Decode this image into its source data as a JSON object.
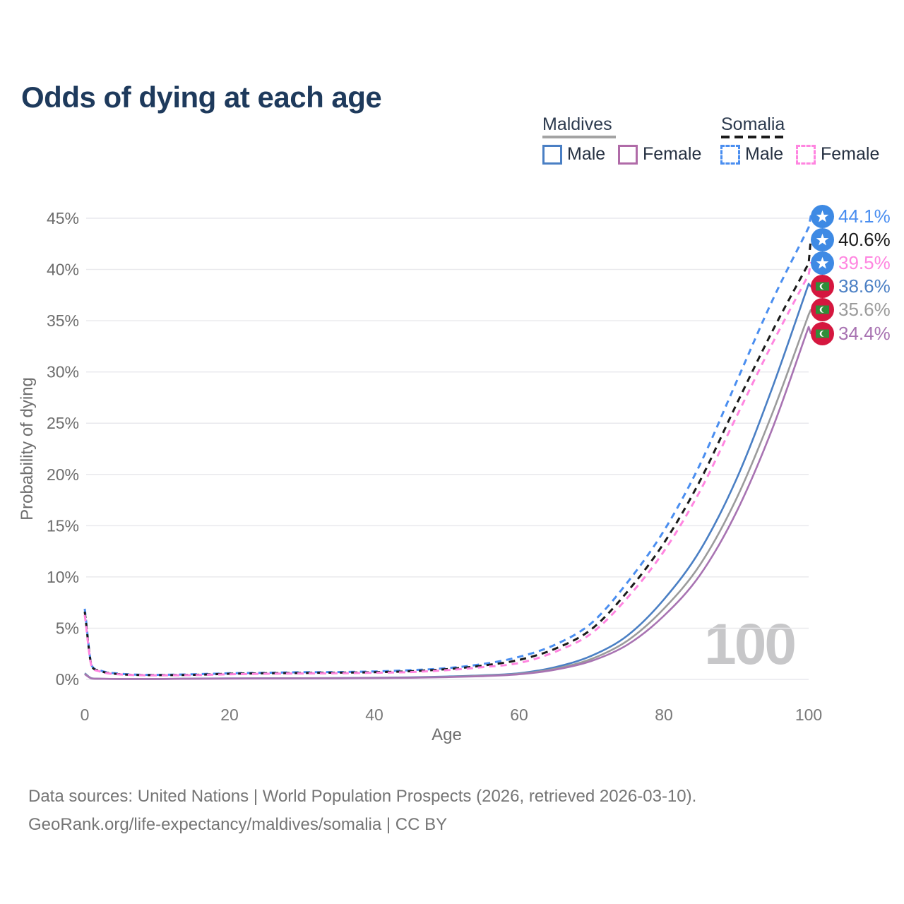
{
  "title": "Odds of dying at each age",
  "legend": {
    "groups": [
      {
        "label": "Maldives",
        "line_style": "solid",
        "underline_color": "#a3a3a3",
        "items": [
          {
            "label": "Male",
            "color": "#4a7fc4",
            "dashed": false
          },
          {
            "label": "Female",
            "color": "#b06ba8",
            "dashed": false
          }
        ]
      },
      {
        "label": "Somalia",
        "line_style": "dashed",
        "underline_color": "#1a1a1a",
        "items": [
          {
            "label": "Male",
            "color": "#4a8ef0",
            "dashed": true
          },
          {
            "label": "Female",
            "color": "#ff85e0",
            "dashed": true
          }
        ]
      }
    ]
  },
  "chart_data": {
    "type": "line",
    "title": "Odds of dying at each age",
    "xlabel": "Age",
    "ylabel": "Probability of dying",
    "xlim": [
      0,
      100
    ],
    "ylim": [
      0,
      45
    ],
    "xticks": [
      0,
      20,
      40,
      60,
      80,
      100
    ],
    "xtick_labels": [
      "0",
      "20",
      "40",
      "60",
      "80",
      "100"
    ],
    "yticks": [
      0,
      5,
      10,
      15,
      20,
      25,
      30,
      35,
      40,
      45
    ],
    "ytick_labels": [
      "0%",
      "5%",
      "10%",
      "15%",
      "20%",
      "25%",
      "30%",
      "35%",
      "40%",
      "45%"
    ],
    "grid": "horizontal",
    "legend_position": "top-right",
    "hover_age_label": "100",
    "ages": [
      0,
      1,
      2,
      5,
      10,
      15,
      20,
      25,
      30,
      35,
      40,
      45,
      50,
      55,
      60,
      65,
      70,
      75,
      80,
      85,
      90,
      95,
      100
    ],
    "series": [
      {
        "name": "Somalia Male",
        "country": "Somalia",
        "sex": "Male",
        "color": "#4a8ef0",
        "dashed": true,
        "flag": "somalia",
        "end_label": "44.1%",
        "end_value": 44.1,
        "values": [
          6.9,
          1.3,
          0.9,
          0.55,
          0.45,
          0.5,
          0.6,
          0.65,
          0.7,
          0.72,
          0.78,
          0.9,
          1.1,
          1.5,
          2.2,
          3.4,
          5.5,
          9.5,
          14.5,
          21.0,
          29.0,
          37.0,
          44.1
        ]
      },
      {
        "name": "Somalia Both sexes",
        "country": "Somalia",
        "sex": "Both",
        "color": "#1a1a1a",
        "dashed": true,
        "flag": "somalia",
        "end_label": "40.6%",
        "end_value": 40.6,
        "values": [
          6.6,
          1.25,
          0.85,
          0.5,
          0.42,
          0.45,
          0.55,
          0.6,
          0.63,
          0.66,
          0.7,
          0.8,
          1.0,
          1.35,
          1.9,
          3.0,
          4.9,
          8.6,
          13.3,
          19.4,
          26.8,
          34.0,
          40.6
        ]
      },
      {
        "name": "Somalia Female",
        "country": "Somalia",
        "sex": "Female",
        "color": "#ff85e0",
        "dashed": true,
        "flag": "somalia",
        "end_label": "39.5%",
        "end_value": 39.5,
        "values": [
          6.3,
          1.2,
          0.8,
          0.48,
          0.4,
          0.42,
          0.5,
          0.55,
          0.58,
          0.6,
          0.65,
          0.72,
          0.9,
          1.2,
          1.6,
          2.7,
          4.5,
          8.0,
          12.5,
          18.4,
          25.6,
          32.8,
          39.5
        ]
      },
      {
        "name": "Maldives Male",
        "country": "Maldives",
        "sex": "Male",
        "color": "#4a7fc4",
        "dashed": false,
        "flag": "maldives",
        "end_label": "38.6%",
        "end_value": 38.6,
        "values": [
          0.6,
          0.1,
          0.07,
          0.05,
          0.05,
          0.08,
          0.1,
          0.11,
          0.12,
          0.13,
          0.16,
          0.2,
          0.28,
          0.4,
          0.6,
          1.2,
          2.3,
          4.3,
          7.8,
          12.6,
          19.5,
          28.5,
          38.6
        ]
      },
      {
        "name": "Maldives Both sexes",
        "country": "Maldives",
        "sex": "Both",
        "color": "#9b9b9b",
        "dashed": false,
        "flag": "maldives",
        "end_label": "35.6%",
        "end_value": 35.6,
        "values": [
          0.55,
          0.09,
          0.06,
          0.05,
          0.05,
          0.07,
          0.09,
          0.1,
          0.11,
          0.12,
          0.14,
          0.18,
          0.25,
          0.36,
          0.55,
          1.05,
          2.0,
          3.8,
          6.9,
          11.2,
          17.6,
          26.0,
          35.6
        ]
      },
      {
        "name": "Maldives Female",
        "country": "Maldives",
        "sex": "Female",
        "color": "#a873b2",
        "dashed": false,
        "flag": "maldives",
        "end_label": "34.4%",
        "end_value": 34.4,
        "values": [
          0.5,
          0.08,
          0.06,
          0.04,
          0.04,
          0.06,
          0.08,
          0.09,
          0.1,
          0.11,
          0.13,
          0.16,
          0.22,
          0.32,
          0.5,
          0.95,
          1.8,
          3.4,
          6.2,
          10.2,
          16.3,
          24.5,
          34.4
        ]
      }
    ]
  },
  "flag_colors": {
    "somalia_blue": "#3e8ae4",
    "maldives_red": "#d5173f",
    "maldives_green": "#2f8e3a",
    "star_white": "#ffffff"
  },
  "footer": {
    "line1": "Data sources: United Nations | World Population Prospects (2026, retrieved 2026-03-10).",
    "line2": "GeoRank.org/life-expectancy/maldives/somalia | CC BY"
  }
}
